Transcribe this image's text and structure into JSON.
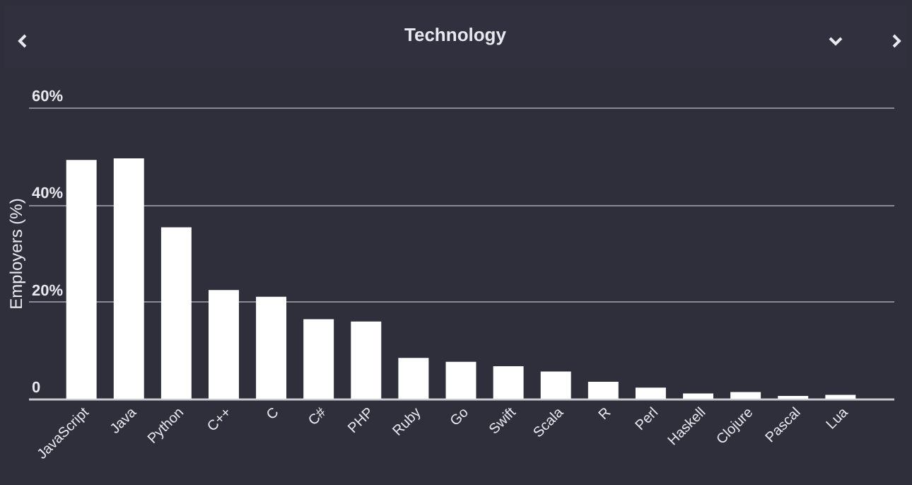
{
  "chart_data": {
    "type": "bar",
    "title": "Technology",
    "ylabel": "Employers (%)",
    "categories": [
      "JavaScript",
      "Java",
      "Python",
      "C++",
      "C",
      "C#",
      "PHP",
      "Ruby",
      "Go",
      "Swift",
      "Scala",
      "R",
      "Perl",
      "Haskell",
      "Clojure",
      "Pascal",
      "Lua"
    ],
    "values": [
      49.2,
      49.5,
      35.3,
      22.4,
      21.0,
      16.4,
      15.9,
      8.4,
      7.6,
      6.7,
      5.6,
      3.5,
      2.3,
      1.1,
      1.4,
      0.6,
      0.8
    ],
    "color": "#ffffff",
    "ylim": [
      0,
      60
    ],
    "yticks": [
      0,
      {
        "value": 20,
        "label": "20%"
      },
      {
        "value": 40,
        "label": "40%"
      },
      {
        "value": 60,
        "label": "60%"
      }
    ],
    "grid": "y"
  }
}
